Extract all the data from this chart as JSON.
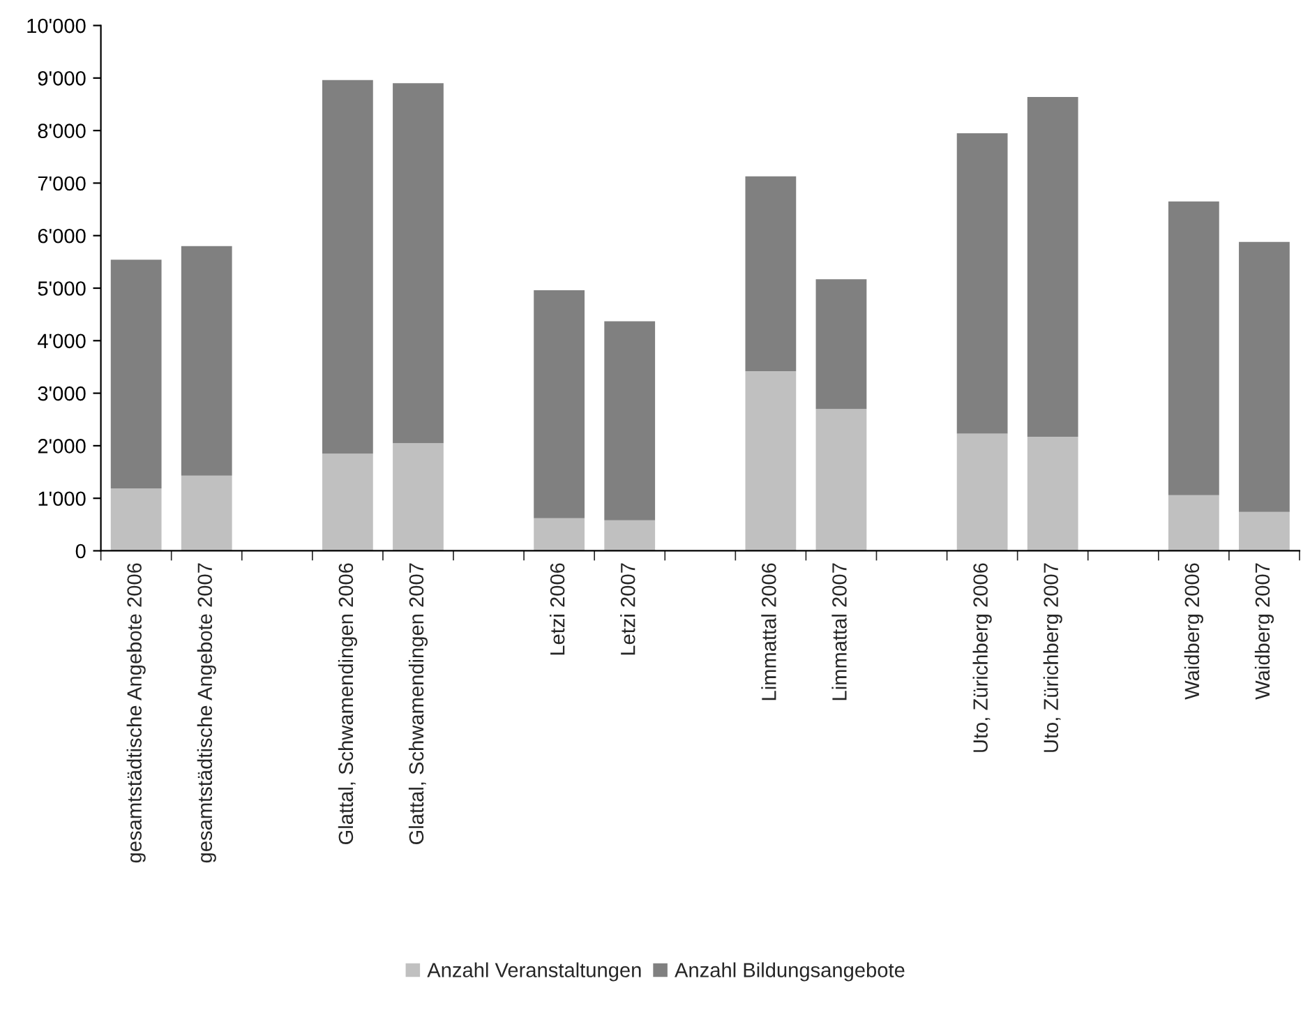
{
  "chart_data": {
    "type": "bar",
    "stacked": true,
    "categories": [
      "gesamtstädtische Angebote 2006",
      "gesamtstädtische Angebote 2007",
      null,
      "Glattal, Schwamendingen 2006",
      "Glattal, Schwamendingen 2007",
      null,
      "Letzi 2006",
      "Letzi 2007",
      null,
      "Limmattal 2006",
      "Limmattal 2007",
      null,
      "Uto, Zürichberg 2006",
      "Uto, Zürichberg 2007",
      null,
      "Waidberg 2006",
      "Waidberg 2007"
    ],
    "series": [
      {
        "name": "Anzahl Veranstaltungen",
        "color": "#c0c0c0",
        "values": [
          1190,
          1430,
          null,
          1850,
          2050,
          null,
          620,
          580,
          null,
          3420,
          2700,
          null,
          2230,
          2170,
          null,
          1060,
          740
        ]
      },
      {
        "name": "Anzahl Bildungsangebote",
        "color": "#808080",
        "values": [
          4350,
          4370,
          null,
          7110,
          6850,
          null,
          4340,
          3790,
          null,
          3710,
          2470,
          null,
          5720,
          6470,
          null,
          5590,
          5140
        ]
      }
    ],
    "ylim": [
      0,
      10000
    ],
    "yticks": [
      0,
      {
        "value": 1000,
        "label": "1'000"
      },
      {
        "value": 2000,
        "label": "2'000"
      },
      {
        "value": 3000,
        "label": "3'000"
      },
      {
        "value": 4000,
        "label": "4'000"
      },
      {
        "value": 5000,
        "label": "5'000"
      },
      {
        "value": 6000,
        "label": "6'000"
      },
      {
        "value": 7000,
        "label": "7'000"
      },
      {
        "value": 8000,
        "label": "8'000"
      },
      {
        "value": 9000,
        "label": "9'000"
      },
      {
        "value": 10000,
        "label": "10'000"
      }
    ],
    "grid": false,
    "legend": "bottom"
  }
}
